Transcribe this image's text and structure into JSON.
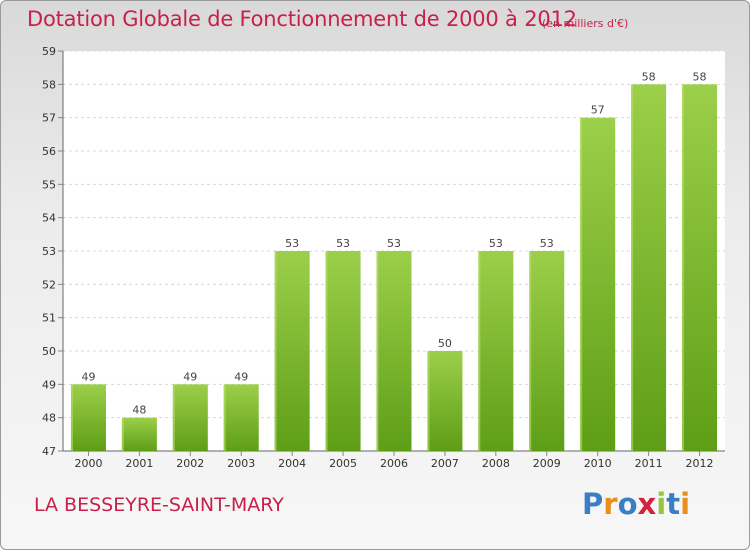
{
  "header": {
    "title": "Dotation Globale de Fonctionnement de 2000 à 2012",
    "unit": "(en milliers d'€)"
  },
  "footer": {
    "commune": "LA BESSEYRE-SAINT-MARY",
    "logo_text": "Proxiti"
  },
  "colors": {
    "title": "#c8204b",
    "bar_light": "#9ccf4a",
    "bar_dark": "#5e9e16",
    "logo": [
      "#3a7fc4",
      "#e8901a",
      "#3a7fc4",
      "#d6203f",
      "#9ac43a",
      "#3a7fc4",
      "#e8901a"
    ]
  },
  "chart_data": {
    "type": "bar",
    "title": "Dotation Globale de Fonctionnement de 2000 à 2012",
    "subtitle": "(en milliers d'€)",
    "categories": [
      "2000",
      "2001",
      "2002",
      "2003",
      "2004",
      "2005",
      "2006",
      "2007",
      "2008",
      "2009",
      "2010",
      "2011",
      "2012"
    ],
    "values": [
      49,
      48,
      49,
      49,
      53,
      53,
      53,
      50,
      53,
      53,
      57,
      58,
      58
    ],
    "ylim": [
      47,
      59
    ],
    "yticks": [
      47,
      48,
      49,
      50,
      51,
      52,
      53,
      54,
      55,
      56,
      57,
      58,
      59
    ],
    "grid": true,
    "data_labels": true
  }
}
